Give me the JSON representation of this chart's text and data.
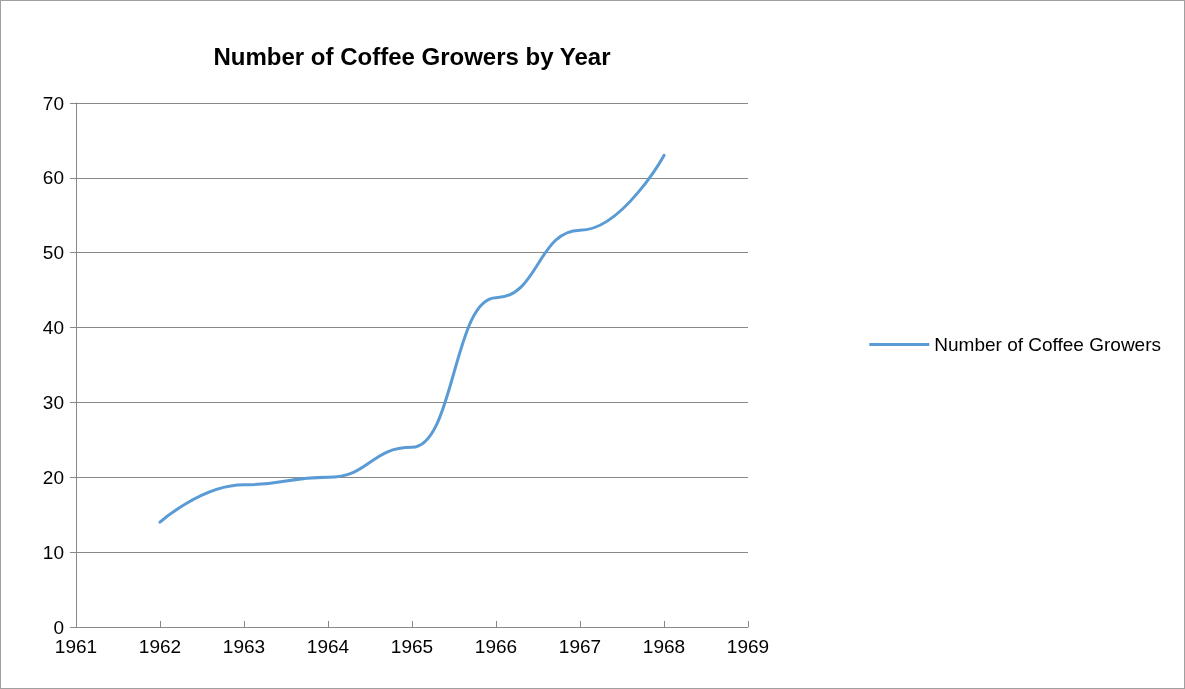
{
  "chart_data": {
    "type": "line",
    "title": "Number of Coffee Growers by Year",
    "x": [
      1962,
      1963,
      1964,
      1965,
      1966,
      1967,
      1968
    ],
    "series": [
      {
        "name": "Number of Coffee Growers",
        "color": "#5b9bd5",
        "values": [
          14,
          19,
          20,
          24,
          44,
          53,
          63
        ]
      }
    ],
    "xlim": [
      1961,
      1969
    ],
    "xticks": [
      1961,
      1962,
      1963,
      1964,
      1965,
      1966,
      1967,
      1968,
      1969
    ],
    "ylim": [
      0,
      70
    ],
    "yticks": [
      0,
      10,
      20,
      30,
      40,
      50,
      60,
      70
    ],
    "grid": "y",
    "legend": "right",
    "marker": "none",
    "line_style": "solid"
  }
}
